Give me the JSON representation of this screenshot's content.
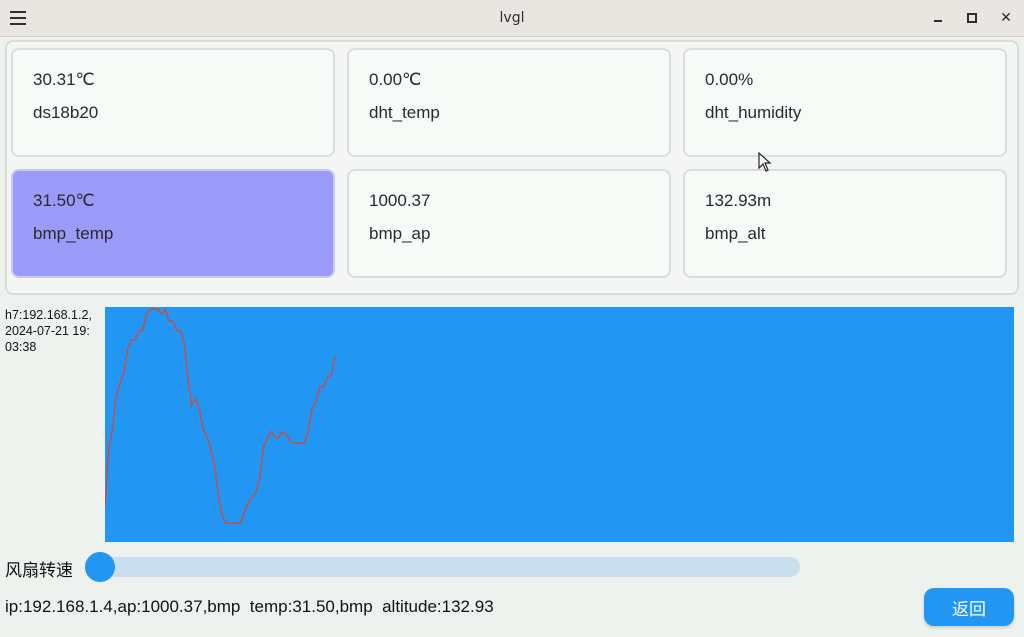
{
  "window": {
    "title": "lvgl",
    "menu_icon": "hamburger-menu-icon",
    "minimize_icon": "minimize-icon",
    "maximize_icon": "maximize-icon",
    "close_icon": "close-icon",
    "close_glyph": "✕"
  },
  "sensors": [
    {
      "value": "30.31℃",
      "name": "ds18b20",
      "selected": false
    },
    {
      "value": "0.00℃",
      "name": "dht_temp",
      "selected": false
    },
    {
      "value": "0.00%",
      "name": "dht_humidity",
      "selected": false
    },
    {
      "value": "31.50℃",
      "name": "bmp_temp",
      "selected": true
    },
    {
      "value": "1000.37",
      "name": "bmp_ap",
      "selected": false
    },
    {
      "value": "132.93m",
      "name": "bmp_alt",
      "selected": false
    }
  ],
  "colors": {
    "selected_card": "#9a9af9",
    "chart_bg": "#2196f3",
    "chart_line": "#c0504d",
    "accent": "#2196f3"
  },
  "info": {
    "line1": "h7:192.168.1.2,",
    "line2": "2024-07-21 19:",
    "line3": "03:38"
  },
  "chart_data": {
    "type": "line",
    "ylim": [
      0,
      100
    ],
    "series": [
      {
        "values": [
          15,
          40,
          48,
          62,
          68,
          72,
          82,
          86,
          86,
          90,
          90,
          97,
          99,
          99,
          99,
          97,
          99,
          94,
          94,
          90,
          90,
          85,
          70,
          58,
          61,
          57,
          48,
          45,
          40,
          33,
          21,
          12,
          8,
          8,
          8,
          8,
          8,
          13,
          17,
          19,
          21,
          27,
          40,
          44,
          47,
          45,
          44,
          47,
          46,
          43,
          42,
          42,
          42,
          42,
          48,
          57,
          60,
          66,
          66,
          70,
          71,
          79
        ]
      }
    ]
  },
  "fan": {
    "label": "风扇转速",
    "level_percent": 0
  },
  "status_text": "ip:192.168.1.4,ap:1000.37,bmp  temp:31.50,bmp  altitude:132.93",
  "back_button_label": "返回"
}
